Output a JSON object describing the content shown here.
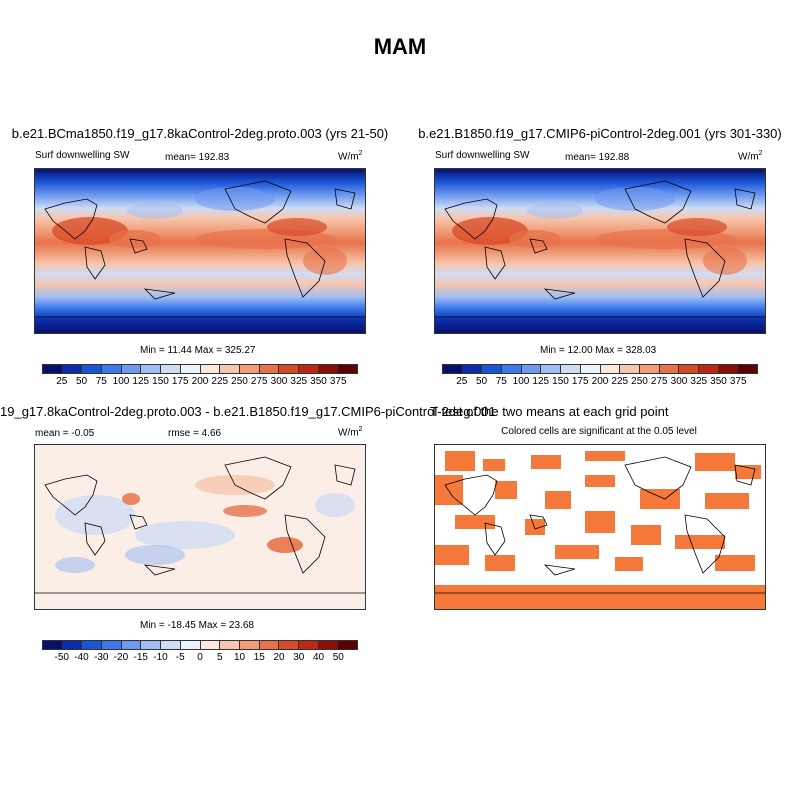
{
  "figure": {
    "title": "MAM"
  },
  "panels": [
    {
      "title": "b.e21.BCma1850.f19_g17.8kaControl-2deg.proto.003 (yrs 21-50)",
      "variable": "Surf downwelling SW",
      "mean_label": "mean=",
      "mean_value": "192.83",
      "units_base": "W/m",
      "units_exp": "2",
      "minmax": "Min = 11.44 Max = 325.27"
    },
    {
      "title": "b.e21.B1850.f19_g17.CMIP6-piControl-2deg.001 (yrs 301-330)",
      "variable": "Surf downwelling SW",
      "mean_label": "mean=",
      "mean_value": "192.88",
      "units_base": "W/m",
      "units_exp": "2",
      "minmax": "Min = 12.00 Max = 328.03"
    },
    {
      "title": "19_g17.8kaControl-2deg.proto.003 - b.e21.B1850.f19_g17.CMIP6-piControl-2deg.001",
      "mean_label": "mean =",
      "mean_value": "-0.05",
      "rmse_label": "rmse =",
      "rmse_value": "4.66",
      "units_base": "W/m",
      "units_exp": "2",
      "minmax": "Min = -18.45 Max = 23.68"
    },
    {
      "title": "T-test of the two means at each grid point",
      "subtitle": "Colored cells are significant at the 0.05 level"
    }
  ],
  "colorbars": {
    "absolute": {
      "ticks": [
        "25",
        "50",
        "75",
        "100",
        "125",
        "150",
        "175",
        "200",
        "225",
        "250",
        "275",
        "300",
        "325",
        "350",
        "375"
      ],
      "colors": [
        "#08106e",
        "#0a2dab",
        "#1a55d8",
        "#3a78ec",
        "#6d99ef",
        "#a3bef2",
        "#cfdcf5",
        "#eef3fa",
        "#fde8de",
        "#f7c6ae",
        "#f09c78",
        "#e8724a",
        "#d84a26",
        "#bd2812",
        "#8d0e06",
        "#5e0000"
      ]
    },
    "difference": {
      "ticks": [
        "-50",
        "-40",
        "-30",
        "-20",
        "-15",
        "-10",
        "-5",
        "0",
        "5",
        "10",
        "15",
        "20",
        "30",
        "40",
        "50"
      ],
      "colors": [
        "#08106e",
        "#0a2dab",
        "#1a55d8",
        "#3a78ec",
        "#6d99ef",
        "#a3bef2",
        "#cfdcf5",
        "#eef3fa",
        "#fde8de",
        "#f7c6ae",
        "#f09c78",
        "#e8724a",
        "#d84a26",
        "#bd2812",
        "#8d0e06",
        "#5e0000"
      ]
    }
  },
  "colors": {
    "significant": "#f5793a",
    "coast": "#000000"
  }
}
